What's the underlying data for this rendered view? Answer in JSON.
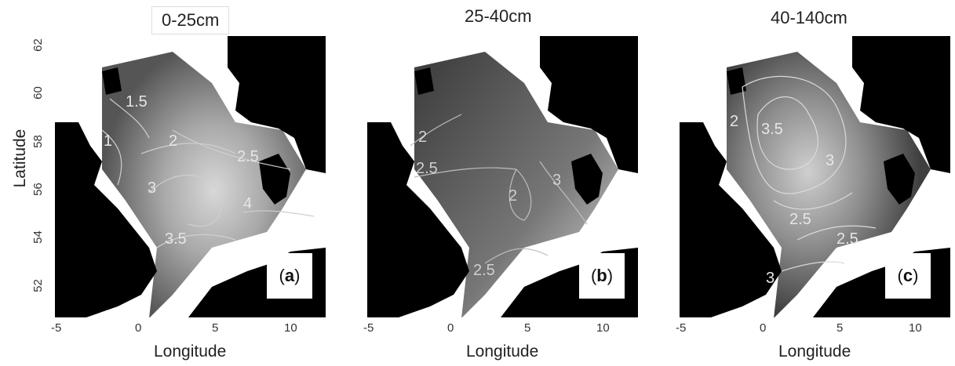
{
  "panels": [
    {
      "id": "a",
      "title": "0-25cm",
      "label_pre": "(",
      "label_letter": "a",
      "label_post": ")"
    },
    {
      "id": "b",
      "title": "25-40cm",
      "label_pre": "(",
      "label_letter": "b",
      "label_post": ")"
    },
    {
      "id": "c",
      "title": "40-140cm",
      "label_pre": "(",
      "label_letter": "c",
      "label_post": ")"
    }
  ],
  "x_axis": {
    "label": "Longitude",
    "ticks": [
      "-5",
      "0",
      "5",
      "10"
    ]
  },
  "y_axis": {
    "label": "Latitude",
    "ticks": [
      "62",
      "60",
      "58",
      "56",
      "54",
      "52"
    ]
  },
  "contours": {
    "a": [
      "1.5",
      "1",
      "2",
      "2.5",
      "3",
      "3.5",
      "4"
    ],
    "b": [
      "2",
      "2.5",
      "2",
      "3",
      "2.5"
    ],
    "c": [
      "2",
      "3.5",
      "3",
      "2.5",
      "2.5",
      "3"
    ]
  }
}
